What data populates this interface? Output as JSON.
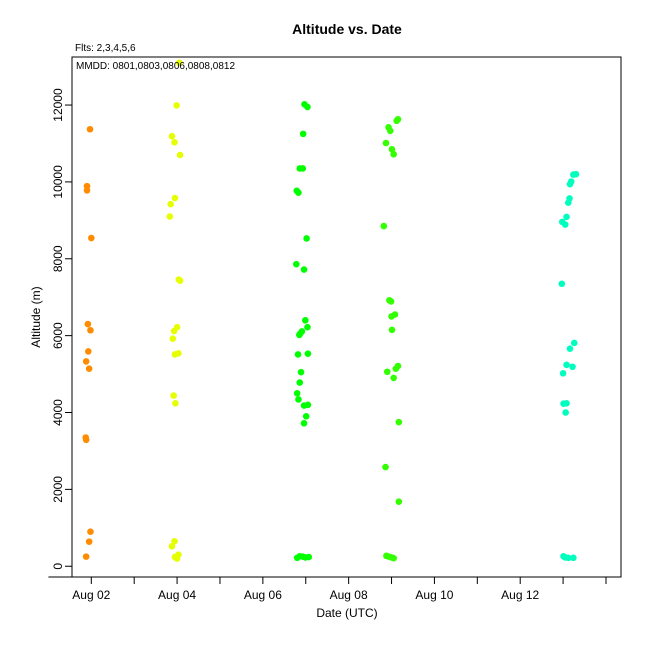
{
  "chart_data": {
    "type": "scatter",
    "title": "Altitude  vs. Date",
    "annotation_flts": "Flts: 2,3,4,5,6",
    "annotation_mmdd": "MMDD: 0801,0803,0806,0808,0812",
    "xlabel": "Date (UTC)",
    "ylabel": "Altitude (m)",
    "xlim": [
      1.55,
      14.35
    ],
    "ylim": [
      -280,
      13250
    ],
    "x_ticks": [
      1.0,
      2.0,
      3.0,
      4.0,
      5.0,
      6.0,
      7.0,
      8.0,
      9.0,
      10.0,
      11.0,
      12.0,
      13.0,
      14.0
    ],
    "x_tick_labels": [
      {
        "x": 2.0,
        "label": "Aug 02"
      },
      {
        "x": 4.0,
        "label": "Aug 04"
      },
      {
        "x": 6.0,
        "label": "Aug 06"
      },
      {
        "x": 8.0,
        "label": "Aug 08"
      },
      {
        "x": 10.0,
        "label": "Aug 10"
      },
      {
        "x": 12.0,
        "label": "Aug 12"
      }
    ],
    "y_ticks": [
      0,
      2000,
      4000,
      6000,
      8000,
      10000,
      12000
    ],
    "grid": false,
    "series": [
      {
        "color": "#ff8c00",
        "points": [
          [
            1.97,
            11370
          ],
          [
            1.9,
            9890
          ],
          [
            1.9,
            9780
          ],
          [
            2.0,
            8540
          ],
          [
            1.92,
            6300
          ],
          [
            1.98,
            6140
          ],
          [
            1.93,
            5590
          ],
          [
            1.88,
            5330
          ],
          [
            1.95,
            5140
          ],
          [
            1.87,
            3350
          ],
          [
            1.88,
            3290
          ],
          [
            1.98,
            900
          ],
          [
            1.95,
            640
          ],
          [
            1.88,
            250
          ]
        ]
      },
      {
        "color": "#e5ff00",
        "points": [
          [
            4.05,
            13100
          ],
          [
            3.99,
            11990
          ],
          [
            3.88,
            11190
          ],
          [
            3.94,
            11030
          ],
          [
            4.07,
            10700
          ],
          [
            3.95,
            9580
          ],
          [
            3.85,
            9420
          ],
          [
            3.83,
            9100
          ],
          [
            4.04,
            7460
          ],
          [
            4.07,
            7430
          ],
          [
            4.0,
            6220
          ],
          [
            3.93,
            6120
          ],
          [
            3.9,
            5920
          ],
          [
            3.95,
            5510
          ],
          [
            4.03,
            5540
          ],
          [
            3.92,
            4440
          ],
          [
            3.96,
            4240
          ],
          [
            3.94,
            650
          ],
          [
            3.88,
            520
          ],
          [
            4.03,
            300
          ],
          [
            3.95,
            240
          ],
          [
            4.0,
            200
          ]
        ]
      },
      {
        "color": "#00ff00",
        "points": [
          [
            6.97,
            12020
          ],
          [
            7.04,
            11950
          ],
          [
            6.94,
            11250
          ],
          [
            6.86,
            10350
          ],
          [
            6.93,
            10350
          ],
          [
            6.79,
            9770
          ],
          [
            6.83,
            9720
          ],
          [
            7.02,
            8530
          ],
          [
            6.78,
            7860
          ],
          [
            6.96,
            7720
          ],
          [
            6.99,
            6400
          ],
          [
            7.04,
            6220
          ],
          [
            6.91,
            6110
          ],
          [
            6.87,
            6050
          ],
          [
            6.85,
            6020
          ],
          [
            6.82,
            5510
          ],
          [
            7.05,
            5530
          ],
          [
            6.89,
            5050
          ],
          [
            6.86,
            4780
          ],
          [
            6.8,
            4500
          ],
          [
            6.83,
            4340
          ],
          [
            6.96,
            4180
          ],
          [
            7.05,
            4200
          ],
          [
            7.01,
            3900
          ],
          [
            6.96,
            3720
          ],
          [
            6.8,
            220
          ],
          [
            6.86,
            260
          ],
          [
            6.93,
            250
          ],
          [
            6.99,
            230
          ],
          [
            7.07,
            240
          ]
        ]
      },
      {
        "color": "#33ff00",
        "points": [
          [
            9.15,
            11630
          ],
          [
            9.12,
            11590
          ],
          [
            8.93,
            11420
          ],
          [
            8.97,
            11330
          ],
          [
            8.87,
            11010
          ],
          [
            9.01,
            10850
          ],
          [
            9.05,
            10720
          ],
          [
            8.82,
            8850
          ],
          [
            8.95,
            6920
          ],
          [
            8.99,
            6890
          ],
          [
            9.08,
            6550
          ],
          [
            9.0,
            6500
          ],
          [
            9.01,
            6150
          ],
          [
            9.15,
            5210
          ],
          [
            9.1,
            5140
          ],
          [
            8.9,
            5060
          ],
          [
            9.05,
            4900
          ],
          [
            9.17,
            3750
          ],
          [
            8.86,
            2580
          ],
          [
            9.17,
            1680
          ],
          [
            8.88,
            270
          ],
          [
            8.94,
            250
          ],
          [
            9.0,
            230
          ],
          [
            9.05,
            210
          ]
        ]
      },
      {
        "color": "#00ffbf",
        "points": [
          [
            13.24,
            10190
          ],
          [
            13.3,
            10200
          ],
          [
            13.19,
            10010
          ],
          [
            13.16,
            9940
          ],
          [
            13.15,
            9570
          ],
          [
            13.12,
            9460
          ],
          [
            13.08,
            9090
          ],
          [
            12.98,
            8960
          ],
          [
            13.05,
            8890
          ],
          [
            12.97,
            7350
          ],
          [
            13.26,
            5810
          ],
          [
            13.16,
            5660
          ],
          [
            13.08,
            5240
          ],
          [
            13.22,
            5190
          ],
          [
            13.0,
            5020
          ],
          [
            13.01,
            4230
          ],
          [
            13.08,
            4240
          ],
          [
            13.06,
            4000
          ],
          [
            13.01,
            260
          ],
          [
            13.05,
            230
          ],
          [
            13.12,
            220
          ],
          [
            13.24,
            220
          ]
        ]
      }
    ]
  }
}
